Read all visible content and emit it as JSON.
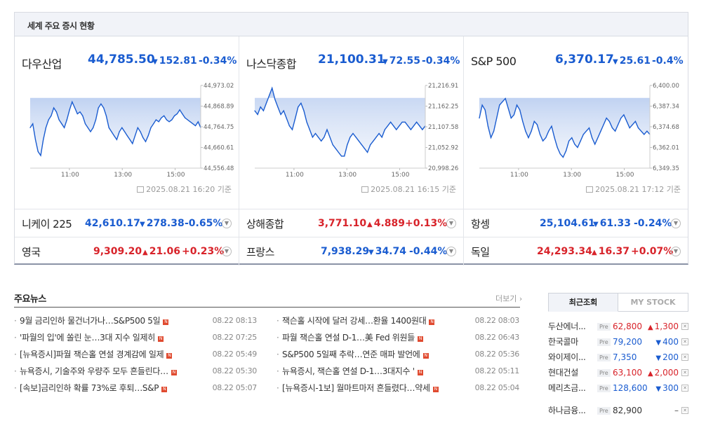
{
  "box_title": "세계 주요 증시 현황",
  "charts": [
    {
      "name": "다우산업",
      "value": "44,785.50",
      "change": "152.81",
      "pct": "-0.34%",
      "dir": "down",
      "timestamp": "2025.08.21 16:20 기준",
      "y_ticks": [
        "44,973.02",
        "44,868.89",
        "44,764.75",
        "44,660.61",
        "44,556.48"
      ],
      "x_ticks": [
        "11:00",
        "13:00",
        "15:00"
      ]
    },
    {
      "name": "나스닥종합",
      "value": "21,100.31",
      "change": "72.55",
      "pct": "-0.34%",
      "dir": "down",
      "timestamp": "2025.08.21 16:15 기준",
      "y_ticks": [
        "21,216.91",
        "21,162.25",
        "21,107.58",
        "21,052.92",
        "20,998.26"
      ],
      "x_ticks": [
        "11:00",
        "13:00",
        "15:00"
      ]
    },
    {
      "name": "S&P 500",
      "value": "6,370.17",
      "change": "25.61",
      "pct": "-0.4%",
      "dir": "down",
      "timestamp": "2025.08.21 17:12 기준",
      "y_ticks": [
        "6,400.00",
        "6,387.34",
        "6,374.68",
        "6,362.01",
        "6,349.35"
      ],
      "x_ticks": [
        "11:00",
        "13:00",
        "15:00"
      ]
    }
  ],
  "chart_data": [
    {
      "type": "line",
      "title": "다우산업",
      "y": [
        44760,
        44780,
        44700,
        44640,
        44620,
        44700,
        44760,
        44800,
        44820,
        44860,
        44840,
        44800,
        44780,
        44760,
        44800,
        44850,
        44890,
        44860,
        44830,
        44840,
        44820,
        44780,
        44760,
        44740,
        44760,
        44800,
        44860,
        44880,
        44860,
        44820,
        44760,
        44740,
        44720,
        44700,
        44740,
        44760,
        44740,
        44720,
        44700,
        44680,
        44720,
        44760,
        44740,
        44710,
        44690,
        44720,
        44760,
        44780,
        44800,
        44790,
        44810,
        44820,
        44800,
        44790,
        44800,
        44820,
        44830,
        44850,
        44830,
        44810,
        44800,
        44790,
        44780,
        44770,
        44790,
        44760
      ],
      "ylim": [
        44556.48,
        44973.02
      ]
    },
    {
      "type": "line",
      "title": "나스닥종합",
      "y": [
        21150,
        21140,
        21160,
        21150,
        21170,
        21190,
        21210,
        21180,
        21160,
        21140,
        21150,
        21130,
        21110,
        21100,
        21130,
        21160,
        21170,
        21150,
        21120,
        21100,
        21080,
        21090,
        21080,
        21070,
        21080,
        21100,
        21080,
        21060,
        21050,
        21040,
        21030,
        21030,
        21060,
        21080,
        21090,
        21080,
        21070,
        21060,
        21050,
        21040,
        21060,
        21070,
        21080,
        21090,
        21080,
        21100,
        21110,
        21120,
        21110,
        21100,
        21110,
        21120,
        21120,
        21110,
        21100,
        21110,
        21120,
        21110,
        21100,
        21110
      ],
      "ylim": [
        20998.26,
        21216.91
      ]
    },
    {
      "type": "line",
      "title": "S&P 500",
      "y": [
        6380,
        6388,
        6385,
        6375,
        6368,
        6372,
        6380,
        6388,
        6390,
        6392,
        6386,
        6380,
        6382,
        6388,
        6385,
        6378,
        6372,
        6368,
        6372,
        6378,
        6376,
        6370,
        6366,
        6368,
        6372,
        6375,
        6368,
        6362,
        6358,
        6356,
        6360,
        6366,
        6368,
        6364,
        6362,
        6366,
        6370,
        6372,
        6374,
        6368,
        6364,
        6368,
        6372,
        6376,
        6380,
        6378,
        6374,
        6372,
        6376,
        6380,
        6382,
        6378,
        6374,
        6376,
        6378,
        6374,
        6372,
        6370,
        6372,
        6370
      ],
      "ylim": [
        6349.35,
        6400.0
      ]
    }
  ],
  "grid": [
    [
      {
        "name": "니케이 225",
        "value": "42,610.17",
        "change": "278.38",
        "pct": "-0.65%",
        "dir": "down"
      },
      {
        "name": "상해종합",
        "value": "3,771.10",
        "change": "4.889",
        "pct": "+0.13%",
        "dir": "up"
      },
      {
        "name": "항셍",
        "value": "25,104.61",
        "change": "61.33",
        "pct": "-0.24%",
        "dir": "down"
      }
    ],
    [
      {
        "name": "영국",
        "value": "9,309.20",
        "change": "21.06",
        "pct": "+0.23%",
        "dir": "up"
      },
      {
        "name": "프랑스",
        "value": "7,938.29",
        "change": "34.74",
        "pct": "-0.44%",
        "dir": "down"
      },
      {
        "name": "독일",
        "value": "24,293.34",
        "change": "16.37",
        "pct": "+0.07%",
        "dir": "up"
      }
    ]
  ],
  "news": {
    "title": "주요뉴스",
    "more": "더보기",
    "left": [
      {
        "title": "9월 금리인하 물건너가나…S&P500 5일",
        "date": "08.22 08:13"
      },
      {
        "title": "'파월의 입'에 쏠린 눈…3대 지수 일제히",
        "date": "08.22 07:25"
      },
      {
        "title": "[뉴욕증시]파월 잭슨홀 연설 경계감에 일제",
        "date": "08.22 05:49"
      },
      {
        "title": "뉴욕증시, 기술주와 우량주 모두 흔들린다…",
        "date": "08.22 05:30"
      },
      {
        "title": "[속보]금리인하 확률 73%로 후퇴…S&P",
        "date": "08.22 05:07"
      }
    ],
    "right": [
      {
        "title": "잭슨홀 시작에 달러 강세…환율 1400원대",
        "date": "08.22 08:03"
      },
      {
        "title": "파월 잭슨홀 연설 D-1…美 Fed 위원들",
        "date": "08.22 06:43"
      },
      {
        "title": "S&P500 5일째 추락…연준 매파 발언에",
        "date": "08.22 05:36"
      },
      {
        "title": "뉴욕증시, 잭슨홀 연설 D-1…3대지수 '",
        "date": "08.22 05:11"
      },
      {
        "title": "[뉴욕증시-1보] 월마트마저 흔들렸다…약세",
        "date": "08.22 05:04"
      }
    ],
    "badge": "N"
  },
  "recent": {
    "tab_active": "최근조회",
    "tab_inactive": "MY STOCK",
    "pre_label": "Pre",
    "items": [
      {
        "name": "두산에너...",
        "price": "62,800",
        "change": "1,300",
        "dir": "up"
      },
      {
        "name": "한국콜마",
        "price": "79,200",
        "change": "400",
        "dir": "down"
      },
      {
        "name": "와이제이...",
        "price": "7,350",
        "change": "200",
        "dir": "down"
      },
      {
        "name": "현대건설",
        "price": "63,100",
        "change": "2,000",
        "dir": "up"
      },
      {
        "name": "메리츠금...",
        "price": "128,600",
        "change": "300",
        "dir": "down"
      },
      {
        "name": "하나금융...",
        "price": "82,900",
        "change": "",
        "dir": "flat"
      }
    ]
  },
  "colors": {
    "down": "#1a5cd0",
    "up": "#d8232a"
  }
}
